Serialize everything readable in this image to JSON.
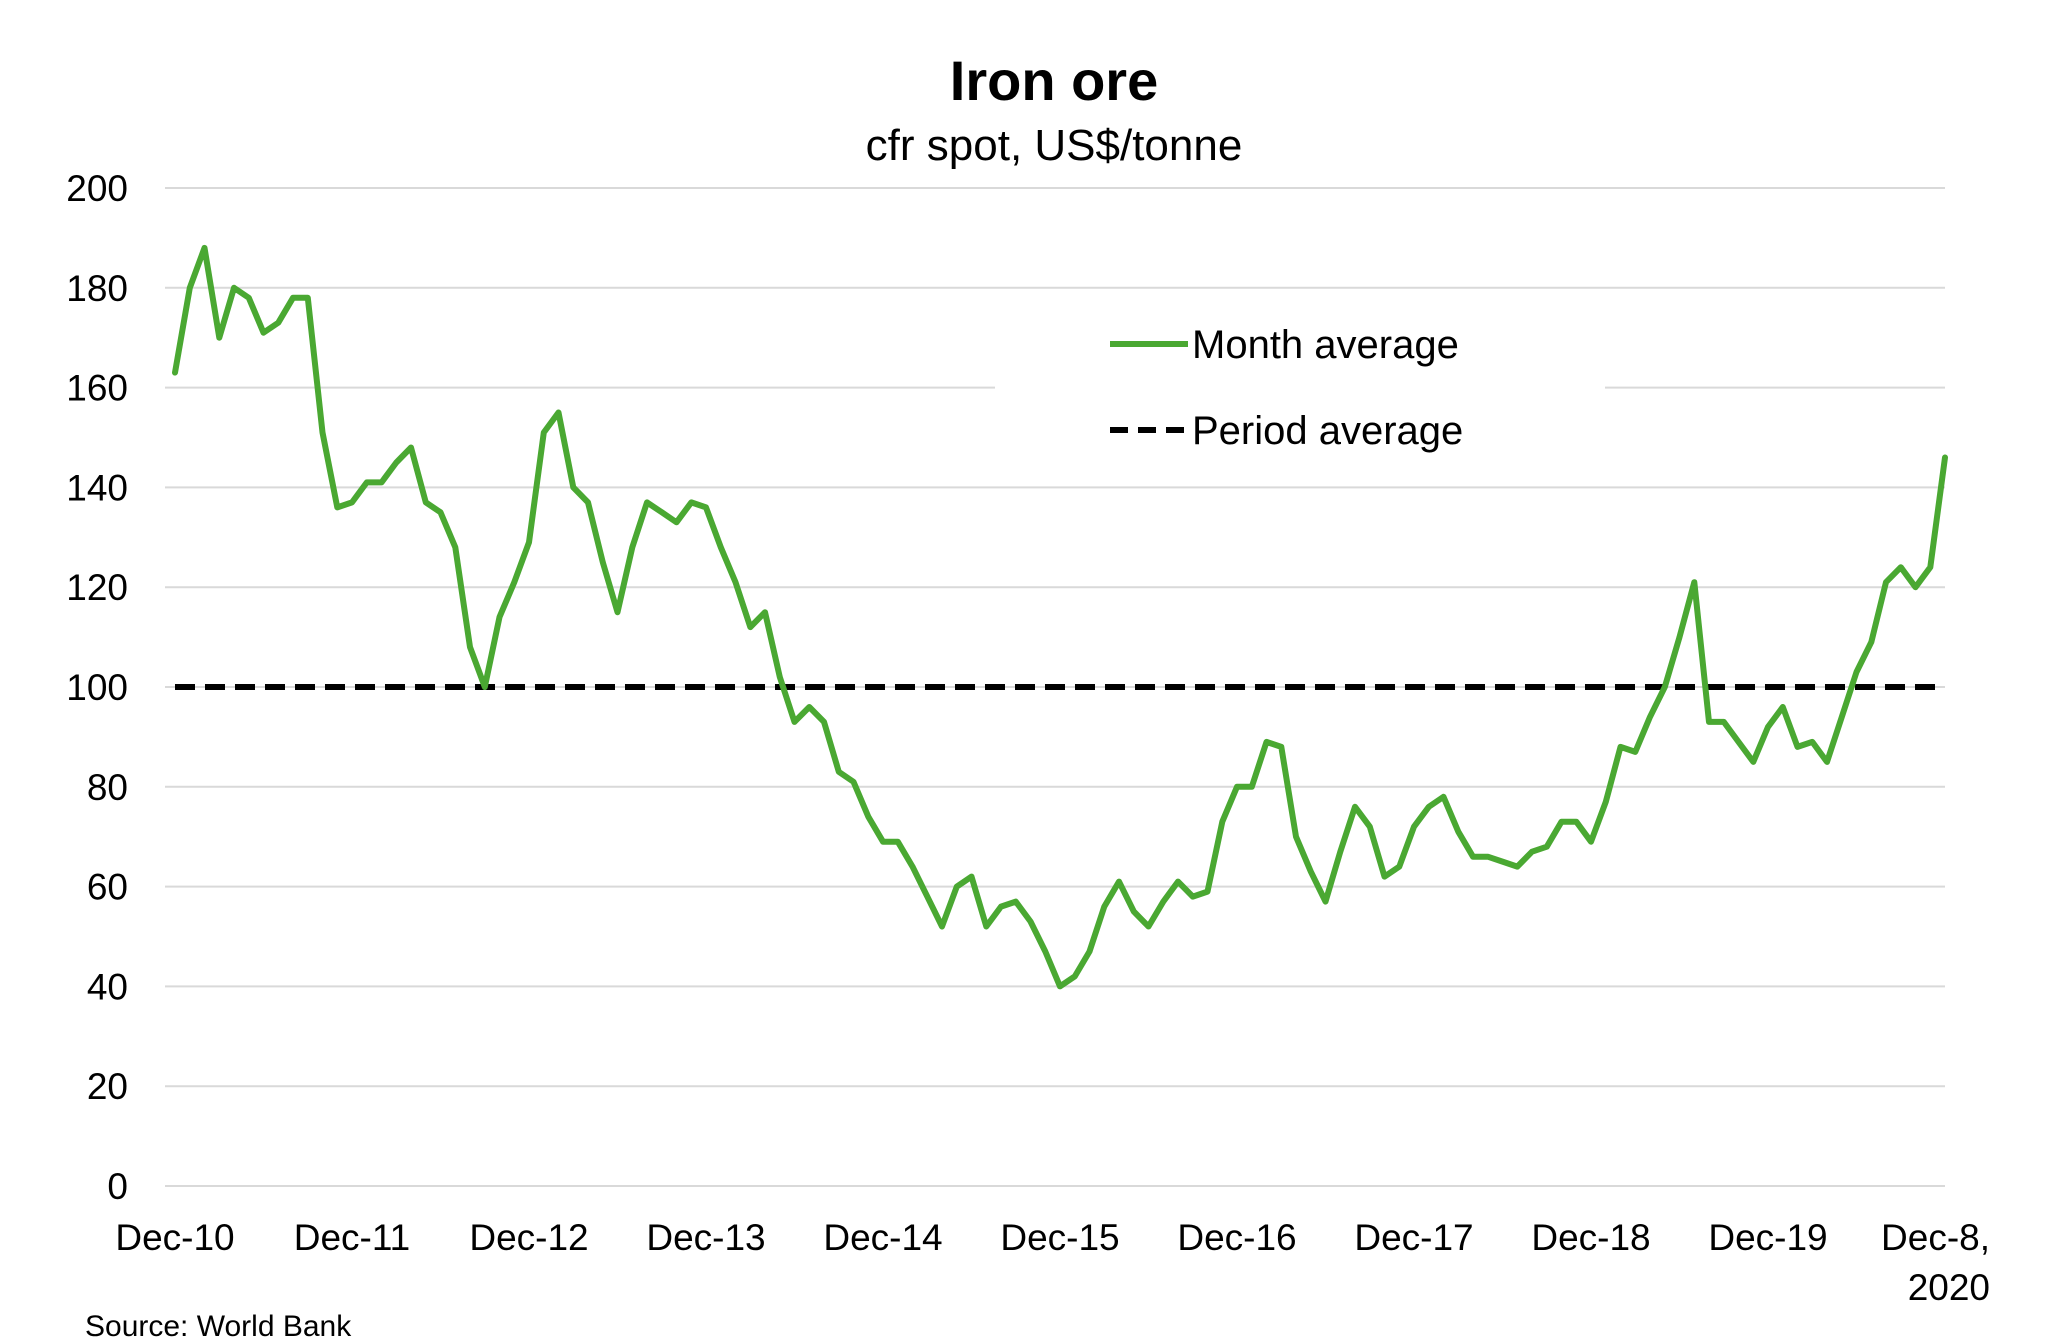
{
  "chart_data": {
    "type": "line",
    "title": "Iron ore",
    "subtitle": "cfr spot, US$/tonne",
    "source": "Source: World Bank",
    "ylim": [
      0,
      200
    ],
    "y_ticks": [
      "0",
      "20",
      "40",
      "60",
      "80",
      "100",
      "120",
      "140",
      "160",
      "180",
      "200"
    ],
    "x_ticks": [
      "Dec-10",
      "Dec-11",
      "Dec-12",
      "Dec-13",
      "Dec-14",
      "Dec-15",
      "Dec-16",
      "Dec-17",
      "Dec-18",
      "Dec-19"
    ],
    "x_last_tick": [
      "Dec-8,",
      "2020"
    ],
    "grid": true,
    "legend_position": "top-right",
    "series": [
      {
        "name": "Month average",
        "color": "#4aa832",
        "style": "solid",
        "values": [
          163,
          180,
          188,
          170,
          180,
          178,
          171,
          173,
          178,
          178,
          151,
          136,
          137,
          141,
          141,
          145,
          148,
          137,
          135,
          128,
          108,
          100,
          114,
          121,
          129,
          151,
          155,
          140,
          137,
          125,
          115,
          128,
          137,
          135,
          133,
          137,
          136,
          128,
          121,
          112,
          115,
          102,
          93,
          96,
          93,
          83,
          81,
          74,
          69,
          69,
          64,
          58,
          52,
          60,
          62,
          52,
          56,
          57,
          53,
          47,
          40,
          42,
          47,
          56,
          61,
          55,
          52,
          57,
          61,
          58,
          59,
          73,
          80,
          80,
          89,
          88,
          70,
          63,
          57,
          67,
          76,
          72,
          62,
          64,
          72,
          76,
          78,
          71,
          66,
          66,
          65,
          64,
          67,
          68,
          73,
          73,
          69,
          77,
          88,
          87,
          94,
          100,
          110,
          121,
          93,
          93,
          89,
          85,
          92,
          96,
          88,
          89,
          85,
          94,
          103,
          109,
          121,
          124,
          120,
          124,
          146
        ]
      },
      {
        "name": "Period average",
        "color": "#000000",
        "style": "dashed",
        "values": [
          100
        ]
      }
    ]
  }
}
